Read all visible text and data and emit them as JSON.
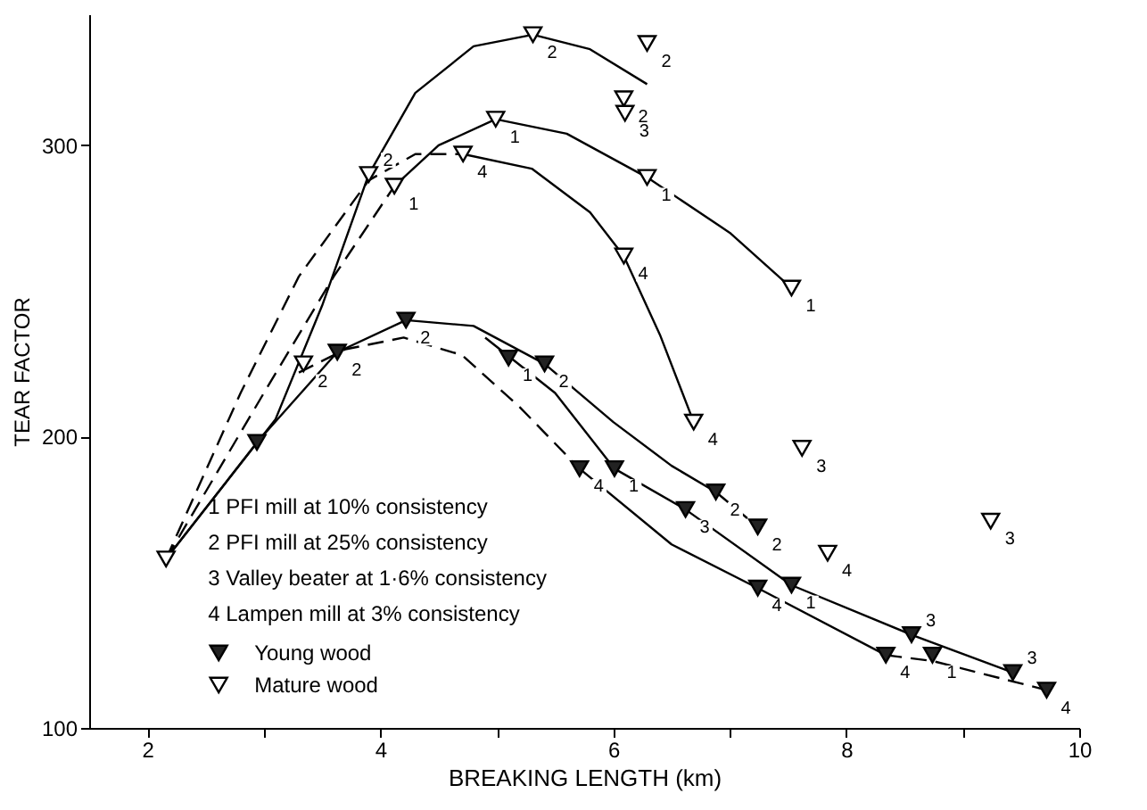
{
  "chart_data": {
    "type": "scatter",
    "xlabel": "BREAKING LENGTH (km)",
    "ylabel": "TEAR FACTOR",
    "xlim": [
      1.5,
      10
    ],
    "xticks": [
      2,
      {
        "value": 3,
        "label": null
      },
      4,
      {
        "value": 5,
        "label": null
      },
      6,
      {
        "value": 7,
        "label": null
      },
      8,
      {
        "value": 9,
        "label": null
      },
      10
    ],
    "ylim": [
      100,
      345
    ],
    "yticks": [
      100,
      200,
      300
    ],
    "grid": false,
    "legend": "bottom left",
    "marker": "triangle",
    "series": [
      {
        "name": "Young wood",
        "type": "scatter",
        "color": "#222222",
        "x": [
          2.94,
          3.63,
          4.22,
          5.1,
          5.41,
          5.71,
          6.01,
          6.62,
          6.88,
          7.24,
          7.24,
          7.53,
          8.56,
          8.34,
          8.74,
          9.43,
          9.72
        ],
        "values": [
          198,
          229,
          240,
          227,
          225,
          189,
          189,
          175,
          181,
          169,
          148,
          149,
          132,
          125,
          125,
          119,
          113
        ]
      },
      {
        "name": "Mature wood",
        "type": "scatter",
        "color": "#ffffff",
        "x": [
          2.16,
          3.34,
          3.9,
          4.12,
          4.71,
          4.99,
          5.31,
          6.29,
          6.09,
          6.1,
          6.29,
          7.53,
          6.09,
          6.69,
          7.62,
          7.84,
          9.24
        ],
        "values": [
          158,
          225,
          290,
          286,
          297,
          309,
          338,
          335,
          316,
          311,
          289,
          251,
          262,
          205,
          196,
          160,
          171
        ]
      },
      {
        "type": "line",
        "color": "#000000",
        "line_style": "solid",
        "marker": "none",
        "x": [
          2.16,
          3.1,
          3.5,
          3.9,
          4.3,
          4.8,
          5.31,
          5.8,
          6.29
        ],
        "values": [
          158,
          206,
          245,
          290,
          318,
          334,
          338,
          333,
          321
        ]
      },
      {
        "type": "line",
        "color": "#000000",
        "line_style": "dashed",
        "marker": "none",
        "x": [
          2.16,
          3.0,
          3.6,
          4.12
        ],
        "values": [
          158,
          215,
          255,
          286
        ]
      },
      {
        "type": "line",
        "color": "#000000",
        "line_style": "solid",
        "marker": "none",
        "x": [
          4.12,
          4.5,
          4.99,
          5.6,
          6.29,
          7.0,
          7.53
        ],
        "values": [
          286,
          300,
          309,
          304,
          289,
          270,
          251
        ]
      },
      {
        "type": "line",
        "color": "#000000",
        "line_style": "dashed",
        "marker": "none",
        "x": [
          2.16,
          2.8,
          3.3,
          3.9,
          4.3,
          4.71
        ],
        "values": [
          158,
          215,
          255,
          288,
          297,
          297
        ]
      },
      {
        "type": "line",
        "color": "#000000",
        "line_style": "solid",
        "marker": "none",
        "x": [
          4.71,
          5.3,
          5.8,
          6.09,
          6.4,
          6.69
        ],
        "values": [
          297,
          292,
          277,
          262,
          235,
          205
        ]
      },
      {
        "type": "line",
        "color": "#000000",
        "line_style": "solid",
        "marker": "none",
        "x": [
          2.16,
          2.94,
          3.63,
          4.22,
          4.8,
          5.41,
          6.0,
          6.5,
          6.88
        ],
        "values": [
          158,
          198,
          229,
          240,
          238,
          225,
          205,
          190,
          181
        ]
      },
      {
        "type": "line",
        "color": "#000000",
        "line_style": "dashed",
        "marker": "none",
        "x": [
          6.88,
          7.24
        ],
        "values": [
          181,
          169
        ]
      },
      {
        "type": "line",
        "color": "#000000",
        "line_style": "solid",
        "marker": "none",
        "x": [
          4.9,
          5.5,
          6.01,
          6.62,
          7.53,
          8.56,
          9.43
        ],
        "values": [
          234,
          215,
          189,
          175,
          149,
          132,
          119
        ]
      },
      {
        "type": "line",
        "color": "#000000",
        "line_style": "dashed",
        "marker": "none",
        "x": [
          3.3,
          3.7,
          4.2,
          4.7,
          5.2,
          5.71
        ],
        "values": [
          222,
          230,
          234,
          228,
          210,
          189
        ]
      },
      {
        "type": "line",
        "color": "#000000",
        "line_style": "solid",
        "marker": "none",
        "x": [
          5.71,
          6.5,
          7.24,
          8.34
        ],
        "values": [
          189,
          163,
          148,
          125
        ]
      },
      {
        "type": "line",
        "color": "#000000",
        "line_style": "dashed",
        "marker": "none",
        "x": [
          8.34,
          8.74,
          9.72
        ],
        "values": [
          125,
          123,
          113
        ]
      }
    ],
    "annotations": [
      "1   PFI mill at 10% consistency",
      "2   PFI mill at 25% consistency",
      "3   Valley beater at 1·6% consistency",
      "4   Lampen mill at 3% consistency",
      {
        "text": "2",
        "x": 3.34,
        "y": 225
      },
      {
        "text": "2",
        "x": 3.9,
        "y": 290
      },
      {
        "text": "1",
        "x": 4.12,
        "y": 286
      },
      {
        "text": "4",
        "x": 4.71,
        "y": 297
      },
      {
        "text": "1",
        "x": 4.99,
        "y": 309
      },
      {
        "text": "2",
        "x": 5.31,
        "y": 338
      },
      {
        "text": "2",
        "x": 6.29,
        "y": 335
      },
      {
        "text": "2",
        "x": 6.09,
        "y": 316
      },
      {
        "text": "3",
        "x": 6.1,
        "y": 311
      },
      {
        "text": "1",
        "x": 6.29,
        "y": 289
      },
      {
        "text": "1",
        "x": 7.53,
        "y": 251
      },
      {
        "text": "4",
        "x": 6.09,
        "y": 262
      },
      {
        "text": "4",
        "x": 6.69,
        "y": 205
      },
      {
        "text": "3",
        "x": 7.62,
        "y": 196
      },
      {
        "text": "4",
        "x": 7.84,
        "y": 160
      },
      {
        "text": "3",
        "x": 9.24,
        "y": 171
      },
      {
        "text": "2",
        "x": 3.63,
        "y": 229
      },
      {
        "text": "2",
        "x": 4.22,
        "y": 240
      },
      {
        "text": "1",
        "x": 5.1,
        "y": 227
      },
      {
        "text": "2",
        "x": 5.41,
        "y": 225
      },
      {
        "text": "4",
        "x": 5.71,
        "y": 189
      },
      {
        "text": "1",
        "x": 6.01,
        "y": 189
      },
      {
        "text": "3",
        "x": 6.62,
        "y": 175
      },
      {
        "text": "2",
        "x": 6.88,
        "y": 181
      },
      {
        "text": "2",
        "x": 7.24,
        "y": 169
      },
      {
        "text": "4",
        "x": 7.24,
        "y": 148
      },
      {
        "text": "1",
        "x": 7.53,
        "y": 149
      },
      {
        "text": "3",
        "x": 8.56,
        "y": 132
      },
      {
        "text": "4",
        "x": 8.34,
        "y": 125
      },
      {
        "text": "1",
        "x": 8.74,
        "y": 125
      },
      {
        "text": "3",
        "x": 9.43,
        "y": 119
      },
      {
        "text": "4",
        "x": 9.72,
        "y": 113
      }
    ]
  }
}
